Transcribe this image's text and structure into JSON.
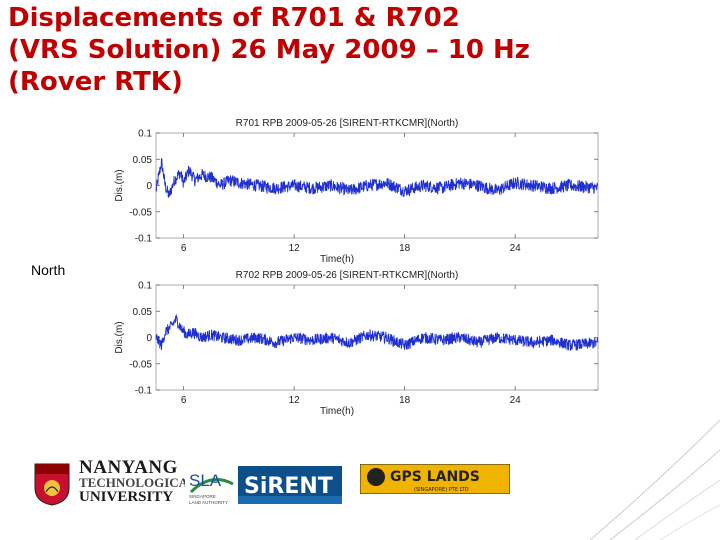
{
  "slide": {
    "title_lines": [
      "Displacements of R701 & R702",
      "(VRS Solution) 26 May 2009 – 10 Hz",
      "(Rover RTK)"
    ],
    "side_label": "North",
    "colors": {
      "title": "#c00000",
      "series": "#1f2fd0"
    }
  },
  "logos": {
    "ntu": {
      "line1": "NANYANG",
      "line2": "TECHNOLOGICAL",
      "line3": "UNIVERSITY"
    },
    "sla": {
      "name": "SLA",
      "sub1": "SINGAPORE",
      "sub2": "LAND AUTHORITY"
    },
    "sirent": {
      "name": "SiRENT"
    },
    "gps_lands": {
      "name": "GPS LANDS",
      "sub": "(SINGAPORE) PTE LTD"
    }
  },
  "chart_data": [
    {
      "type": "line",
      "title": "R701 RPB 2009-05-26 [SIRENT-RTKCMR](North)",
      "xlabel": "Time(h)",
      "ylabel": "Dis.(m)",
      "xlim": [
        4.5,
        28.5
      ],
      "ylim": [
        -0.1,
        0.1
      ],
      "xticks": [
        6,
        12,
        18,
        24
      ],
      "yticks": [
        -0.1,
        -0.05,
        0,
        0.05,
        0.1
      ],
      "ytick_labels": [
        "-0.1",
        "-0.05",
        "0",
        "0.05",
        "0.1"
      ],
      "grid": false,
      "series": [
        {
          "x": [
            4.5,
            4.8,
            5.0,
            5.2,
            5.5,
            5.8,
            6.0,
            6.3,
            6.6,
            7.0,
            7.5,
            8.0,
            8.5,
            9.0,
            10.0,
            11.0,
            12.0,
            13.0,
            14.0,
            15.0,
            16.0,
            17.0,
            18.0,
            19.0,
            20.0,
            21.0,
            22.0,
            23.0,
            24.0,
            25.0,
            26.0,
            27.0,
            28.5
          ],
          "y": [
            -0.01,
            0.045,
            0.0,
            -0.02,
            0.01,
            0.025,
            0.005,
            0.03,
            0.01,
            0.02,
            0.015,
            0.0,
            0.01,
            0.005,
            0.0,
            -0.005,
            0.0,
            -0.005,
            0.0,
            -0.01,
            0.0,
            0.005,
            -0.01,
            0.0,
            -0.005,
            0.005,
            0.0,
            -0.01,
            0.005,
            0.0,
            -0.005,
            0.0,
            -0.005
          ],
          "noise_amplitude": 0.012
        }
      ]
    },
    {
      "type": "line",
      "title": "R702 RPB 2009-05-26 [SIRENT-RTKCMR](North)",
      "xlabel": "Time(h)",
      "ylabel": "Dis.(m)",
      "xlim": [
        4.5,
        28.5
      ],
      "ylim": [
        -0.1,
        0.1
      ],
      "xticks": [
        6,
        12,
        18,
        24
      ],
      "yticks": [
        -0.1,
        -0.05,
        0,
        0.05,
        0.1
      ],
      "ytick_labels": [
        "-0.1",
        "-0.05",
        "0",
        "0.05",
        "0.1"
      ],
      "grid": false,
      "series": [
        {
          "x": [
            4.5,
            4.8,
            5.0,
            5.3,
            5.6,
            5.9,
            6.2,
            6.5,
            7.0,
            7.5,
            8.0,
            9.0,
            10.0,
            11.0,
            12.0,
            13.0,
            14.0,
            15.0,
            16.0,
            17.0,
            18.0,
            19.0,
            20.0,
            21.0,
            22.0,
            23.0,
            24.0,
            25.0,
            26.0,
            27.0,
            28.5
          ],
          "y": [
            0.0,
            -0.015,
            0.01,
            0.02,
            0.035,
            0.015,
            0.005,
            0.01,
            0.0,
            0.005,
            0.0,
            -0.005,
            0.0,
            -0.01,
            0.0,
            -0.005,
            0.0,
            -0.01,
            0.005,
            0.0,
            -0.015,
            0.0,
            -0.005,
            0.0,
            -0.01,
            0.0,
            -0.005,
            -0.01,
            -0.005,
            -0.015,
            -0.01
          ],
          "noise_amplitude": 0.011
        }
      ]
    }
  ]
}
